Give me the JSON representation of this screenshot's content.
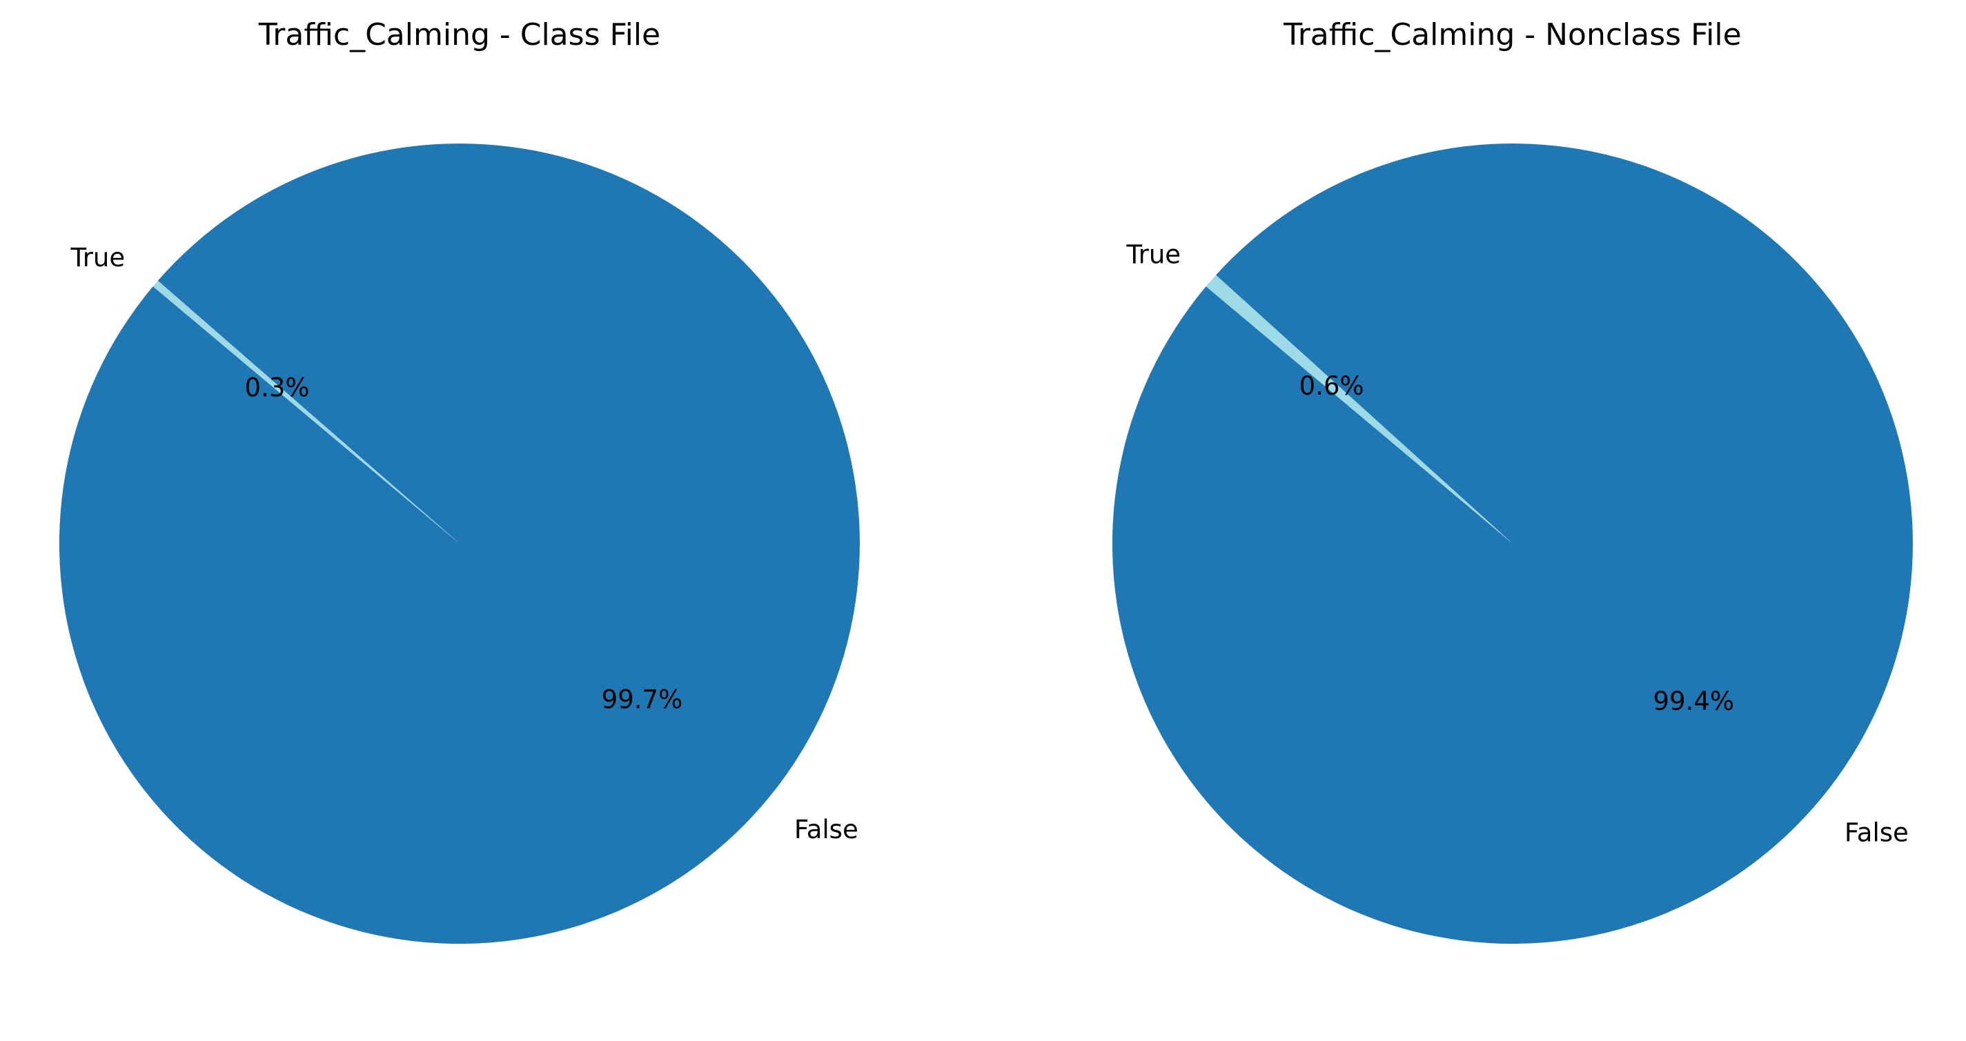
{
  "chart_data": [
    {
      "type": "pie",
      "title": "Traffic_Calming - Class File",
      "categories": [
        "False",
        "True"
      ],
      "values": [
        99.7,
        0.3
      ],
      "value_labels": [
        "99.7%",
        "0.3%"
      ],
      "colors": [
        "#1f77b4",
        "#9edae5"
      ],
      "legend": "none"
    },
    {
      "type": "pie",
      "title": "Traffic_Calming - Nonclass File",
      "categories": [
        "False",
        "True"
      ],
      "values": [
        99.4,
        0.6
      ],
      "value_labels": [
        "99.4%",
        "0.6%"
      ],
      "colors": [
        "#1f77b4",
        "#9edae5"
      ],
      "legend": "none"
    }
  ]
}
